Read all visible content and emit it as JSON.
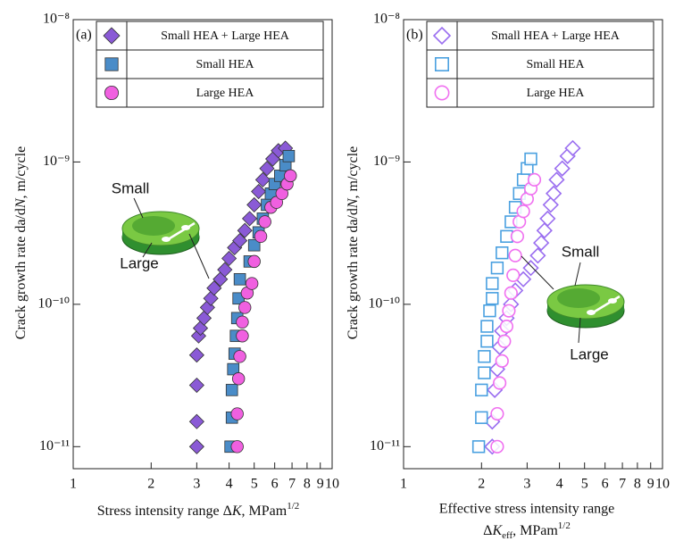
{
  "chart_data": [
    {
      "type": "scatter",
      "panel_label": "(a)",
      "xlabel": [
        "Stress intensity range Δ",
        "K",
        ", MPam",
        "1/2"
      ],
      "ylabel": [
        "Crack growth rate da/d",
        "N",
        ", m/cycle"
      ],
      "xscale": "log",
      "yscale": "log",
      "filled": true,
      "xlim": [
        1,
        10
      ],
      "ylim": [
        7e-12,
        1e-08
      ],
      "xticks": [
        1,
        2,
        3,
        4,
        5,
        6,
        7,
        8,
        9,
        10
      ],
      "yticks": [
        {
          "value": 1e-08,
          "label": "10⁻⁸"
        },
        {
          "value": 1e-09,
          "label": "10⁻⁹"
        },
        {
          "value": 1e-10,
          "label": "10⁻¹⁰"
        },
        {
          "value": 1e-11,
          "label": "10⁻¹¹"
        }
      ],
      "annotations": [
        "Small",
        "Large"
      ],
      "series": [
        {
          "name": "Small HEA + Large HEA",
          "marker": "diamond",
          "color": "#8a5ad6",
          "x": [
            3,
            3,
            3,
            3,
            3.05,
            3.1,
            3.2,
            3.3,
            3.4,
            3.5,
            3.7,
            3.85,
            4.0,
            4.2,
            4.4,
            4.6,
            4.8,
            5.0,
            5.2,
            5.4,
            5.6,
            5.9,
            6.2,
            6.6
          ],
          "values": [
            1e-11,
            1.5e-11,
            2.7e-11,
            4.4e-11,
            6e-11,
            6.8e-11,
            8e-11,
            9.5e-11,
            1.1e-10,
            1.3e-10,
            1.5e-10,
            1.75e-10,
            2.1e-10,
            2.5e-10,
            2.8e-10,
            3.3e-10,
            4e-10,
            5e-10,
            6.2e-10,
            7.5e-10,
            9e-10,
            1.05e-09,
            1.2e-09,
            1.25e-09
          ]
        },
        {
          "name": "Small HEA",
          "marker": "square",
          "color": "#4a8cc8",
          "x": [
            4.05,
            4.1,
            4.1,
            4.15,
            4.2,
            4.25,
            4.3,
            4.35,
            4.4,
            4.8,
            5.0,
            5.2,
            5.4,
            5.6,
            5.8,
            6.0,
            6.3,
            6.6,
            6.8
          ],
          "values": [
            1e-11,
            1.6e-11,
            2.5e-11,
            3.5e-11,
            4.5e-11,
            6e-11,
            8e-11,
            1.1e-10,
            1.5e-10,
            2e-10,
            2.6e-10,
            3.2e-10,
            4e-10,
            5e-10,
            6e-10,
            7e-10,
            8e-10,
            9.5e-10,
            1.1e-09
          ]
        },
        {
          "name": "Large HEA",
          "marker": "circle",
          "color": "#f060e0",
          "x": [
            4.3,
            4.3,
            4.35,
            4.4,
            4.5,
            4.5,
            4.6,
            4.7,
            4.9,
            5.0,
            5.3,
            5.5,
            5.8,
            6.1,
            6.4,
            6.7,
            6.9
          ],
          "values": [
            1e-11,
            1.7e-11,
            3e-11,
            4.3e-11,
            6e-11,
            7.5e-11,
            9.5e-11,
            1.2e-10,
            1.4e-10,
            2e-10,
            3e-10,
            3.8e-10,
            4.8e-10,
            5.2e-10,
            6e-10,
            7e-10,
            8e-10
          ]
        }
      ]
    },
    {
      "type": "scatter",
      "panel_label": "(b)",
      "xlabel": [
        "Effective stress intensity range",
        "Δ",
        "K",
        "eff",
        ", MPam",
        "1/2"
      ],
      "ylabel": [
        "Crack growth rate da/d",
        "N",
        ", m/cycle"
      ],
      "xscale": "log",
      "yscale": "log",
      "filled": false,
      "xlim": [
        1,
        10
      ],
      "ylim": [
        7e-12,
        1e-08
      ],
      "xticks": [
        1,
        2,
        3,
        4,
        5,
        6,
        7,
        8,
        9,
        10
      ],
      "yticks": [
        {
          "value": 1e-08,
          "label": "10⁻⁸"
        },
        {
          "value": 1e-09,
          "label": "10⁻⁹"
        },
        {
          "value": 1e-10,
          "label": "10⁻¹⁰"
        },
        {
          "value": 1e-11,
          "label": "10⁻¹¹"
        }
      ],
      "annotations": [
        "Small",
        "Large"
      ],
      "series": [
        {
          "name": "Small HEA + Large HEA",
          "marker": "diamond",
          "color": "#9a6ef0",
          "x": [
            2.2,
            2.2,
            2.25,
            2.3,
            2.35,
            2.4,
            2.5,
            2.6,
            2.7,
            2.9,
            3.1,
            3.3,
            3.4,
            3.5,
            3.6,
            3.7,
            3.8,
            3.9,
            4.1,
            4.3,
            4.5
          ],
          "values": [
            1e-11,
            1.5e-11,
            2.5e-11,
            3.5e-11,
            5e-11,
            6.5e-11,
            8e-11,
            1e-10,
            1.25e-10,
            1.5e-10,
            1.8e-10,
            2.2e-10,
            2.7e-10,
            3.3e-10,
            4e-10,
            5e-10,
            6e-10,
            7.5e-10,
            9e-10,
            1.1e-09,
            1.25e-09
          ]
        },
        {
          "name": "Small HEA",
          "marker": "square",
          "color": "#4aa0e0",
          "x": [
            1.95,
            2.0,
            2.0,
            2.05,
            2.05,
            2.1,
            2.1,
            2.15,
            2.2,
            2.2,
            2.3,
            2.4,
            2.5,
            2.6,
            2.7,
            2.8,
            2.9,
            3.0,
            3.1
          ],
          "values": [
            1e-11,
            1.6e-11,
            2.5e-11,
            3.3e-11,
            4.3e-11,
            5.5e-11,
            7e-11,
            9e-11,
            1.1e-10,
            1.4e-10,
            1.8e-10,
            2.3e-10,
            3e-10,
            3.8e-10,
            4.8e-10,
            6e-10,
            7.5e-10,
            9e-10,
            1.05e-09
          ]
        },
        {
          "name": "Large HEA",
          "marker": "circle",
          "color": "#f070f0",
          "x": [
            2.3,
            2.3,
            2.35,
            2.4,
            2.45,
            2.5,
            2.55,
            2.6,
            2.65,
            2.7,
            2.75,
            2.8,
            2.9,
            3.0,
            3.1,
            3.2
          ],
          "values": [
            1e-11,
            1.7e-11,
            2.8e-11,
            4e-11,
            5.5e-11,
            7e-11,
            9e-11,
            1.2e-10,
            1.6e-10,
            2.2e-10,
            3e-10,
            3.8e-10,
            4.5e-10,
            5.5e-10,
            6.5e-10,
            7.5e-10
          ]
        }
      ]
    }
  ]
}
